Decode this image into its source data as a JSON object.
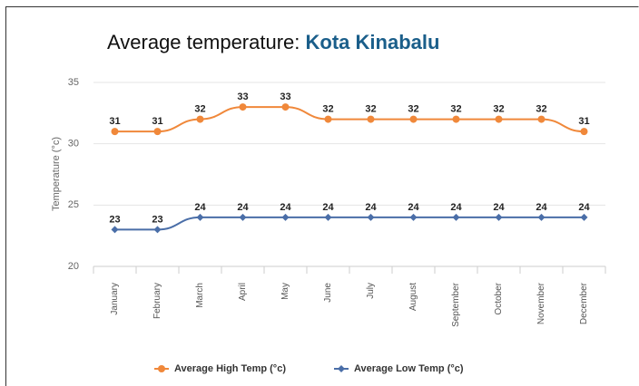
{
  "chart_data": {
    "type": "line",
    "title": "Average temperature:",
    "title_highlight": "Kota Kinabalu",
    "y_label": "Temperature (°c)",
    "categories": [
      "January",
      "February",
      "March",
      "April",
      "May",
      "June",
      "July",
      "August",
      "September",
      "October",
      "November",
      "December"
    ],
    "series": [
      {
        "name": "Average High Temp (°c)",
        "color": "#f0883a",
        "values": [
          31,
          31,
          32,
          33,
          33,
          32,
          32,
          32,
          32,
          32,
          32,
          31
        ]
      },
      {
        "name": "Average Low Temp (°c)",
        "color": "#4a6ea8",
        "values": [
          23,
          23,
          24,
          24,
          24,
          24,
          24,
          24,
          24,
          24,
          24,
          24
        ]
      }
    ],
    "ylim": [
      20,
      35
    ],
    "yticks": [
      20,
      25,
      30,
      35
    ],
    "grid": true,
    "legend": "bottom"
  }
}
